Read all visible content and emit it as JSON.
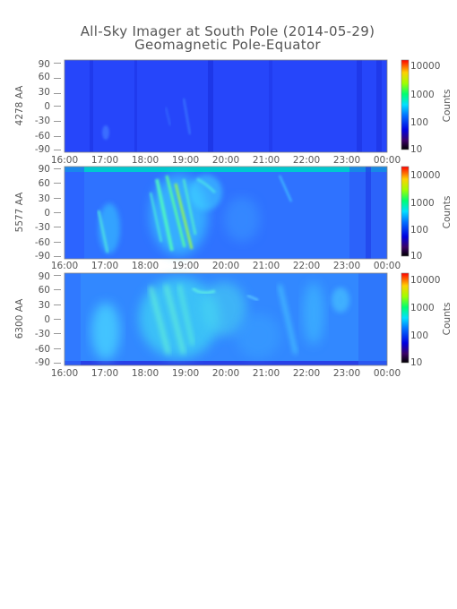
{
  "chart_data": {
    "type": "heatmap",
    "title": "All-Sky Imager at South Pole (2014-05-29)",
    "subtitle": "Geomagnetic Pole-Equator",
    "x_ticks": [
      "16:00",
      "17:00",
      "18:00",
      "19:00",
      "20:00",
      "21:00",
      "22:00",
      "23:00",
      "00:00"
    ],
    "y_ticks": [
      "90",
      "60",
      "30",
      "0",
      "-30",
      "-60",
      "-90"
    ],
    "ylim": [
      -90,
      90
    ],
    "colorbar": {
      "label": "Counts",
      "ticks": [
        "10000",
        "1000",
        "100",
        "10"
      ],
      "scale": "log",
      "range": [
        10,
        20000
      ]
    },
    "panels": [
      {
        "ylabel": "4278 AA",
        "intensity": "low",
        "background": "#2a4fff"
      },
      {
        "ylabel": "5577 AA",
        "intensity": "medium",
        "background": "#2f73ff"
      },
      {
        "ylabel": "6300 AA",
        "intensity": "high",
        "background": "#2f86ff"
      }
    ]
  }
}
